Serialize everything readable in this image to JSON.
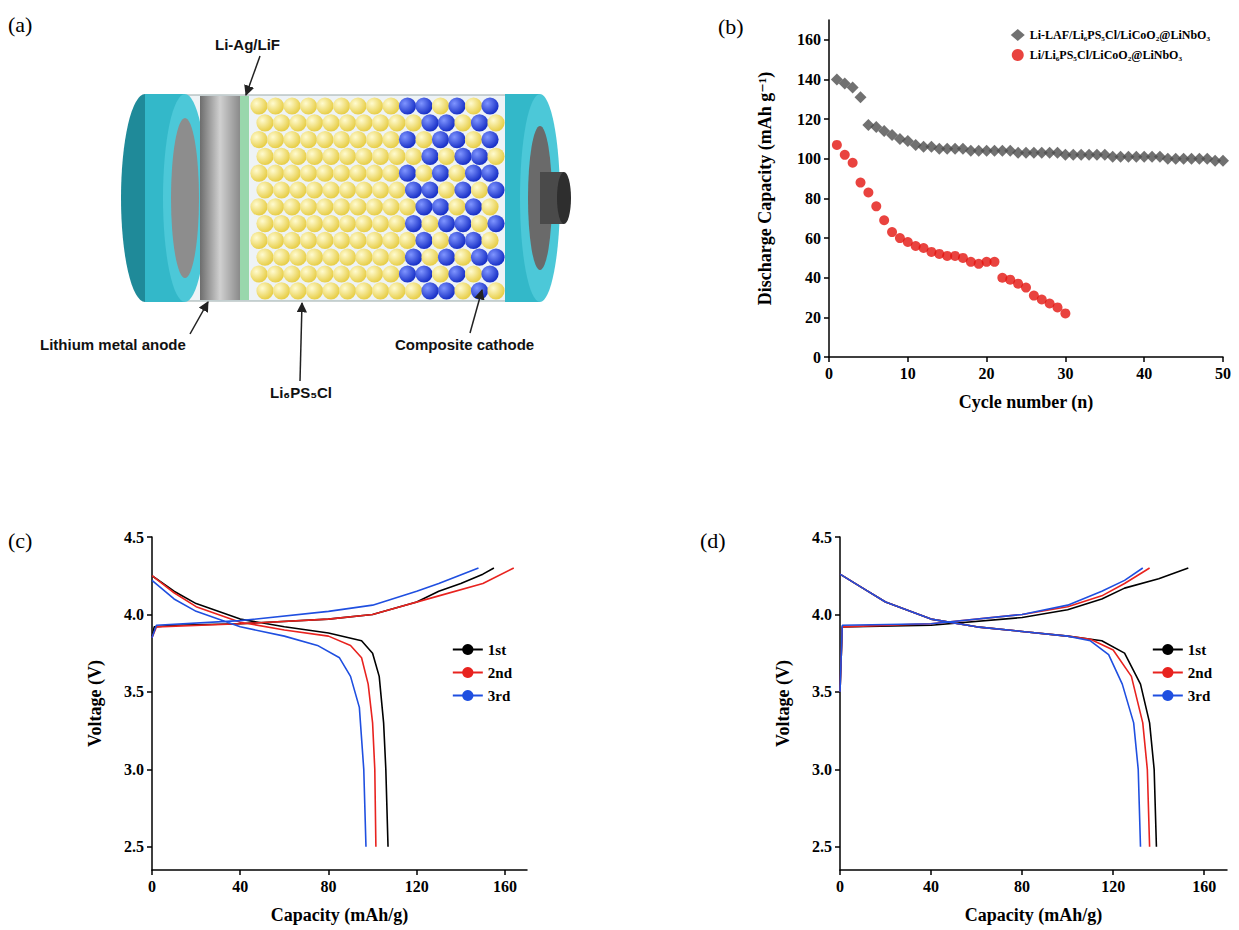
{
  "diagram": {
    "panel": "(a)",
    "labels": {
      "interlayer": "Li-Ag/LiF",
      "anode": "Lithium metal anode",
      "electrolyte": "Li₆PS₅Cl",
      "cathode": "Composite cathode"
    }
  },
  "chart_data": [
    {
      "type": "scatter",
      "panel": "(b)",
      "x_label": "Cycle number (n)",
      "y_label": "Discharge Capacity (mAh g⁻¹)",
      "xlim": [
        0,
        50
      ],
      "xticks": [
        0,
        10,
        20,
        30,
        40,
        50
      ],
      "ylim": [
        0,
        170
      ],
      "yticks": [
        0,
        20,
        40,
        60,
        80,
        100,
        120,
        140,
        160
      ],
      "grid": false,
      "legend": "upper right",
      "x": [
        1,
        2,
        3,
        4,
        5,
        6,
        7,
        8,
        9,
        10,
        11,
        12,
        13,
        14,
        15,
        16,
        17,
        18,
        19,
        20,
        21,
        22,
        23,
        24,
        25,
        26,
        27,
        28,
        29,
        30,
        31,
        32,
        33,
        34,
        35,
        36,
        37,
        38,
        39,
        40,
        41,
        42,
        43,
        44,
        45,
        46,
        47,
        48,
        49,
        50
      ],
      "series": [
        {
          "name": "Li-LAF/Li₆PS₅Cl/LiCoO₂@LiNbO₃",
          "color": "#4d4d4d",
          "marker": "diamond",
          "values": [
            140,
            138,
            136,
            131,
            117,
            116,
            114,
            112,
            110,
            109,
            107,
            106,
            106,
            105,
            105,
            105,
            105,
            104,
            104,
            104,
            104,
            104,
            104,
            103,
            103,
            103,
            103,
            103,
            103,
            102,
            102,
            102,
            102,
            102,
            102,
            101,
            101,
            101,
            101,
            101,
            101,
            101,
            100,
            100,
            100,
            100,
            100,
            100,
            99,
            99
          ]
        },
        {
          "name": "Li/Li₆PS₅Cl/LiCoO₂@LiNbO₃",
          "color": "#e3140f",
          "marker": "circle",
          "values": [
            107,
            102,
            98,
            88,
            83,
            76,
            69,
            63,
            60,
            58,
            56,
            55,
            53,
            52,
            51,
            51,
            50,
            48,
            47,
            48,
            48,
            40,
            39,
            37,
            35,
            31,
            29,
            27,
            25,
            22,
            null,
            null,
            null,
            null,
            null,
            null,
            null,
            null,
            null,
            null,
            null,
            null,
            null,
            null,
            null,
            null,
            null,
            null,
            null,
            null
          ]
        }
      ]
    },
    {
      "type": "line",
      "panel": "(c)",
      "x_label": "Capacity (mAh/g)",
      "y_label": "Voltage (V)",
      "xlim": [
        0,
        170
      ],
      "xticks": [
        0,
        40,
        80,
        120,
        160
      ],
      "ylim": [
        2.35,
        4.5
      ],
      "yticks": [
        2.5,
        {
          "value": 3,
          "label": "3.0"
        },
        3.5,
        {
          "value": 4,
          "label": "4.0"
        },
        4.5
      ],
      "grid": false,
      "legend": "right",
      "series": [
        {
          "name": "1st",
          "color": "#000000",
          "line_style": "solid",
          "x": [
            0,
            1,
            10,
            40,
            80,
            100,
            120,
            130,
            140,
            150,
            155,
            null,
            0,
            10,
            20,
            40,
            60,
            80,
            95,
            100,
            103,
            105,
            106,
            107
          ],
          "values": [
            3.85,
            3.92,
            3.93,
            3.94,
            3.97,
            4.0,
            4.08,
            4.15,
            4.2,
            4.26,
            4.3,
            null,
            4.25,
            4.15,
            4.07,
            3.97,
            3.92,
            3.88,
            3.83,
            3.75,
            3.6,
            3.3,
            3.0,
            2.5
          ]
        },
        {
          "name": "2nd",
          "color": "#e8231f",
          "line_style": "solid",
          "x": [
            0,
            2,
            40,
            80,
            100,
            130,
            150,
            164,
            null,
            0,
            10,
            20,
            40,
            60,
            80,
            90,
            95,
            98,
            100,
            101,
            101.5
          ],
          "values": [
            3.85,
            3.92,
            3.94,
            3.97,
            4.0,
            4.12,
            4.2,
            4.3,
            null,
            4.25,
            4.14,
            4.05,
            3.95,
            3.9,
            3.86,
            3.8,
            3.72,
            3.55,
            3.3,
            3.0,
            2.5
          ]
        },
        {
          "name": "3rd",
          "color": "#1f4fe0",
          "line_style": "solid",
          "x": [
            0,
            2,
            40,
            80,
            100,
            120,
            130,
            148,
            null,
            0,
            10,
            20,
            40,
            60,
            75,
            85,
            90,
            94,
            96,
            97
          ],
          "values": [
            3.85,
            3.93,
            3.96,
            4.02,
            4.06,
            4.15,
            4.2,
            4.3,
            null,
            4.22,
            4.1,
            4.02,
            3.92,
            3.86,
            3.8,
            3.72,
            3.6,
            3.4,
            3.0,
            2.5
          ]
        }
      ]
    },
    {
      "type": "line",
      "panel": "(d)",
      "x_label": "Capacity (mAh/g)",
      "y_label": "Voltage (V)",
      "xlim": [
        0,
        170
      ],
      "xticks": [
        0,
        40,
        80,
        120,
        160
      ],
      "ylim": [
        2.35,
        4.5
      ],
      "yticks": [
        2.5,
        {
          "value": 3,
          "label": "3.0"
        },
        3.5,
        {
          "value": 4,
          "label": "4.0"
        },
        4.5
      ],
      "grid": false,
      "legend": "right",
      "series": [
        {
          "name": "1st",
          "color": "#000000",
          "line_style": "solid",
          "x": [
            0,
            1,
            40,
            80,
            100,
            115,
            125,
            140,
            153,
            null,
            0,
            10,
            20,
            40,
            60,
            80,
            100,
            115,
            125,
            132,
            136,
            138,
            139
          ],
          "values": [
            3.5,
            3.92,
            3.93,
            3.98,
            4.03,
            4.1,
            4.17,
            4.23,
            4.3,
            null,
            4.26,
            4.17,
            4.08,
            3.97,
            3.92,
            3.89,
            3.86,
            3.83,
            3.75,
            3.55,
            3.3,
            3.0,
            2.5
          ]
        },
        {
          "name": "2nd",
          "color": "#e8231f",
          "line_style": "solid",
          "x": [
            0,
            1,
            40,
            80,
            100,
            115,
            125,
            136,
            null,
            0,
            10,
            20,
            40,
            60,
            80,
            100,
            110,
            120,
            128,
            133,
            135,
            136
          ],
          "values": [
            3.5,
            3.92,
            3.94,
            4.0,
            4.05,
            4.12,
            4.2,
            4.3,
            null,
            4.26,
            4.17,
            4.08,
            3.97,
            3.92,
            3.89,
            3.86,
            3.84,
            3.77,
            3.6,
            3.3,
            3.0,
            2.5
          ]
        },
        {
          "name": "3rd",
          "color": "#1f4fe0",
          "line_style": "solid",
          "x": [
            0,
            1,
            40,
            80,
            100,
            115,
            125,
            133,
            null,
            0,
            10,
            20,
            40,
            60,
            80,
            100,
            110,
            118,
            124,
            129,
            131,
            132
          ],
          "values": [
            3.5,
            3.93,
            3.94,
            4.0,
            4.06,
            4.15,
            4.22,
            4.3,
            null,
            4.26,
            4.17,
            4.08,
            3.97,
            3.92,
            3.89,
            3.86,
            3.83,
            3.74,
            3.55,
            3.3,
            3.0,
            2.5
          ]
        }
      ]
    }
  ]
}
